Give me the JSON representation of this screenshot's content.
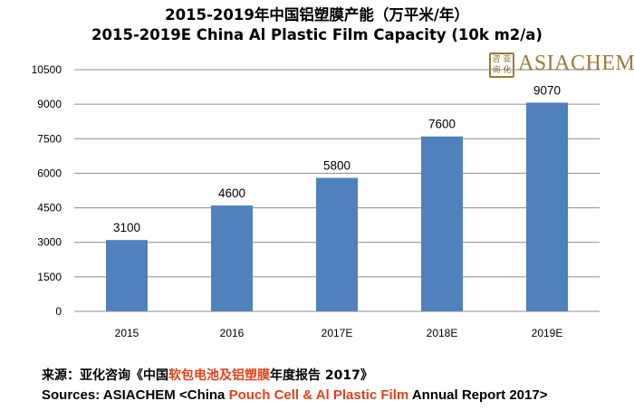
{
  "chart_data": {
    "type": "bar",
    "title": "2015-2019年中国铝塑膜产能（万平米/年）",
    "subtitle": "2015-2019E China Al Plastic Film Capacity (10k m2/a)",
    "categories": [
      "2015",
      "2016",
      "2017E",
      "2018E",
      "2019E"
    ],
    "values": [
      3100,
      4600,
      5800,
      7600,
      9070
    ],
    "ylim": [
      0,
      10500
    ],
    "yticks": [
      "0",
      "1500",
      "3000",
      "4500",
      "6000",
      "7500",
      "9000",
      "10500"
    ],
    "grid": true,
    "bar_color": "#4f81bd",
    "xlabel": "",
    "ylabel": ""
  },
  "logo": {
    "text": "ASIACHEM",
    "mark": "®",
    "seal_chars": [
      "咨",
      "亚",
      "询",
      "化"
    ]
  },
  "source": {
    "cn_prefix": "来源：亚化咨询《中国",
    "cn_highlight": "软包电池及铝塑膜",
    "cn_suffix": "年度报告 2017》",
    "en_prefix": "Sources: ASIACHEM <China ",
    "en_highlight": "Pouch Cell & Al Plastic Film",
    "en_suffix": " Annual Report 2017>",
    "highlight_color": "#e2411a"
  }
}
